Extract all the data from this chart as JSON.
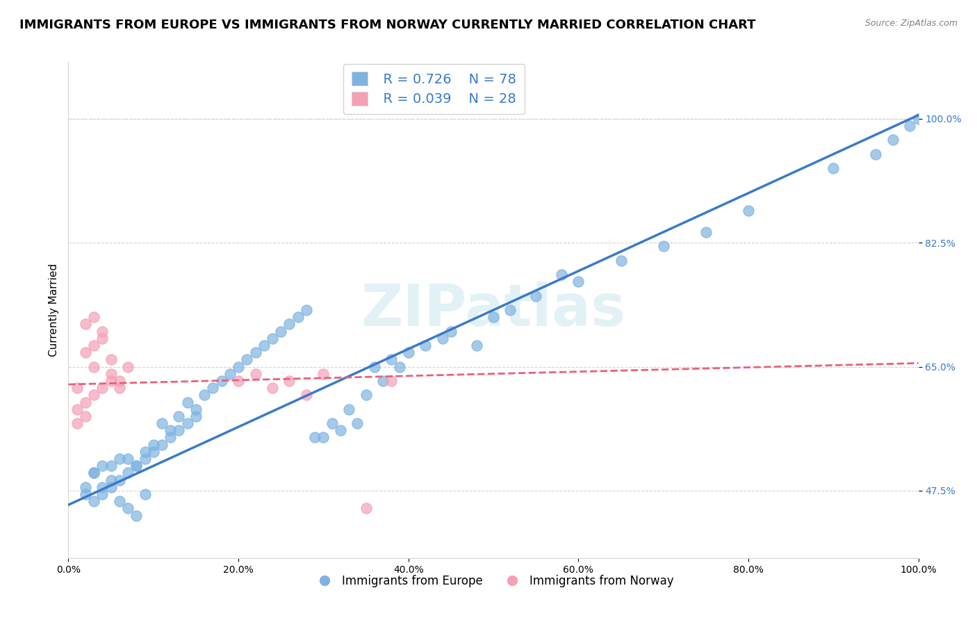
{
  "title": "IMMIGRANTS FROM EUROPE VS IMMIGRANTS FROM NORWAY CURRENTLY MARRIED CORRELATION CHART",
  "source": "Source: ZipAtlas.com",
  "xlabel": "",
  "ylabel": "Currently Married",
  "xlim": [
    0.0,
    1.0
  ],
  "ylim": [
    0.38,
    1.08
  ],
  "yticks": [
    0.475,
    0.65,
    0.825,
    1.0
  ],
  "ytick_labels": [
    "47.5%",
    "65.0%",
    "82.5%",
    "100.0%"
  ],
  "xticks": [
    0.0,
    0.2,
    0.4,
    0.6,
    0.8,
    1.0
  ],
  "xtick_labels": [
    "0.0%",
    "20.0%",
    "40.0%",
    "60.0%",
    "80.0%",
    "100.0%"
  ],
  "legend_r1": "R = 0.726",
  "legend_n1": "N = 78",
  "legend_r2": "R = 0.039",
  "legend_n2": "N = 28",
  "blue_color": "#7EB3E0",
  "pink_color": "#F4A0B5",
  "blue_line_color": "#3A7AC8",
  "pink_line_color": "#E8607A",
  "watermark": "ZIPatlas",
  "title_fontsize": 13,
  "axis_label_fontsize": 11,
  "tick_fontsize": 10,
  "blue_scatter_x": [
    0.02,
    0.03,
    0.04,
    0.05,
    0.06,
    0.02,
    0.03,
    0.04,
    0.05,
    0.06,
    0.07,
    0.08,
    0.09,
    0.1,
    0.12,
    0.11,
    0.13,
    0.14,
    0.15,
    0.16,
    0.17,
    0.18,
    0.19,
    0.2,
    0.21,
    0.22,
    0.23,
    0.24,
    0.25,
    0.26,
    0.27,
    0.28,
    0.3,
    0.32,
    0.34,
    0.36,
    0.38,
    0.4,
    0.42,
    0.44,
    0.03,
    0.04,
    0.05,
    0.06,
    0.07,
    0.08,
    0.09,
    0.1,
    0.11,
    0.12,
    0.13,
    0.14,
    0.15,
    0.07,
    0.08,
    0.09,
    0.29,
    0.31,
    0.33,
    0.35,
    0.37,
    0.39,
    0.55,
    0.6,
    0.65,
    0.7,
    0.75,
    0.8,
    0.9,
    0.95,
    0.97,
    0.99,
    1.0,
    0.5,
    0.45,
    0.48,
    0.52,
    0.58
  ],
  "blue_scatter_y": [
    0.48,
    0.5,
    0.51,
    0.49,
    0.52,
    0.47,
    0.5,
    0.48,
    0.51,
    0.49,
    0.52,
    0.51,
    0.53,
    0.54,
    0.56,
    0.57,
    0.58,
    0.6,
    0.59,
    0.61,
    0.62,
    0.63,
    0.64,
    0.65,
    0.66,
    0.67,
    0.68,
    0.69,
    0.7,
    0.71,
    0.72,
    0.73,
    0.55,
    0.56,
    0.57,
    0.65,
    0.66,
    0.67,
    0.68,
    0.69,
    0.46,
    0.47,
    0.48,
    0.46,
    0.5,
    0.51,
    0.52,
    0.53,
    0.54,
    0.55,
    0.56,
    0.57,
    0.58,
    0.45,
    0.44,
    0.47,
    0.55,
    0.57,
    0.59,
    0.61,
    0.63,
    0.65,
    0.75,
    0.77,
    0.8,
    0.82,
    0.84,
    0.87,
    0.93,
    0.95,
    0.97,
    0.99,
    1.0,
    0.72,
    0.7,
    0.68,
    0.73,
    0.78
  ],
  "pink_scatter_x": [
    0.01,
    0.02,
    0.02,
    0.03,
    0.03,
    0.04,
    0.04,
    0.05,
    0.05,
    0.01,
    0.02,
    0.03,
    0.04,
    0.05,
    0.06,
    0.01,
    0.02,
    0.03,
    0.2,
    0.22,
    0.24,
    0.26,
    0.28,
    0.3,
    0.35,
    0.38,
    0.06,
    0.07
  ],
  "pink_scatter_y": [
    0.62,
    0.67,
    0.71,
    0.68,
    0.72,
    0.7,
    0.69,
    0.66,
    0.63,
    0.59,
    0.6,
    0.61,
    0.62,
    0.64,
    0.63,
    0.57,
    0.58,
    0.65,
    0.63,
    0.64,
    0.62,
    0.63,
    0.61,
    0.64,
    0.45,
    0.63,
    0.62,
    0.65
  ],
  "blue_trend_x": [
    0.0,
    1.0
  ],
  "blue_trend_y": [
    0.455,
    1.005
  ],
  "pink_trend_x": [
    0.0,
    1.0
  ],
  "pink_trend_y": [
    0.625,
    0.655
  ]
}
